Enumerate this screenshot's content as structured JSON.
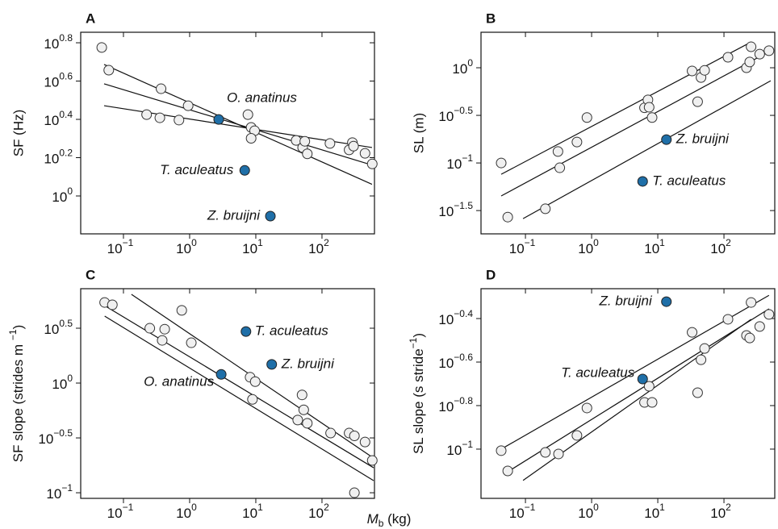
{
  "chart_data": [
    {
      "type": "scatter",
      "panel_label": "A",
      "y_label": "SF (Hz)",
      "log_x": true,
      "log_y": true,
      "xlim": [
        0.0226,
        621
      ],
      "ylim": [
        0.634,
        7.16
      ],
      "xticks": [
        {
          "value": 0.1,
          "label": [
            "10",
            "−1"
          ]
        },
        {
          "value": 1,
          "label": [
            "10",
            "0"
          ]
        },
        {
          "value": 10,
          "label": [
            "10",
            "1"
          ]
        },
        {
          "value": 100,
          "label": [
            "10",
            "2"
          ]
        }
      ],
      "yticks": [
        {
          "value": 6.3096,
          "label": [
            "10",
            "0.8"
          ]
        },
        {
          "value": 3.9811,
          "label": [
            "10",
            "0.6"
          ]
        },
        {
          "value": 2.5119,
          "label": [
            "10",
            "0.4"
          ]
        },
        {
          "value": 1.5849,
          "label": [
            "10",
            "0.2"
          ]
        },
        {
          "value": 1,
          "label": [
            "10",
            "0"
          ]
        }
      ],
      "points": {
        "color": "#f0f0f0",
        "x": [
          0.047,
          0.06,
          0.224,
          0.37,
          0.355,
          0.69,
          0.95,
          7.6,
          8.5,
          9.6,
          8.5,
          40.7,
          51,
          55,
          60,
          132,
          257,
          288,
          300,
          447,
          575
        ],
        "y": [
          5.96,
          4.54,
          2.66,
          3.63,
          2.56,
          2.49,
          2.96,
          2.66,
          2.28,
          2.19,
          2.0,
          1.95,
          1.79,
          1.93,
          1.66,
          1.88,
          1.74,
          1.9,
          1.82,
          1.67,
          1.47
        ]
      },
      "highlights": {
        "color": "#1f6fa8",
        "labels": [
          "O. anatinus",
          "T. aculeatus",
          "Z. bruijni"
        ],
        "x": [
          2.75,
          6.8,
          16.6
        ],
        "y": [
          2.51,
          1.36,
          0.785
        ]
      },
      "fits": [
        {
          "x": [
            0.051,
            570
          ],
          "y": [
            4.86,
            1.15
          ]
        },
        {
          "x": [
            0.051,
            570
          ],
          "y": [
            3.85,
            1.45
          ]
        },
        {
          "x": [
            0.051,
            570
          ],
          "y": [
            2.96,
            1.79
          ]
        }
      ]
    },
    {
      "type": "scatter",
      "panel_label": "B",
      "y_label": "SL (m)",
      "log_x": true,
      "log_y": true,
      "xlim": [
        0.0213,
        586
      ],
      "ylim": [
        0.018,
        2.36
      ],
      "xticks": [
        {
          "value": 0.1,
          "label": [
            "10",
            "−1"
          ]
        },
        {
          "value": 1,
          "label": [
            "10",
            "0"
          ]
        },
        {
          "value": 10,
          "label": [
            "10",
            "1"
          ]
        },
        {
          "value": 100,
          "label": [
            "10",
            "2"
          ]
        }
      ],
      "yticks": [
        {
          "value": 1,
          "label": [
            "10",
            "0"
          ]
        },
        {
          "value": 0.3162,
          "label": [
            "10",
            "−0.5"
          ]
        },
        {
          "value": 0.1,
          "label": [
            "10",
            "−1"
          ]
        },
        {
          "value": 0.03162,
          "label": [
            "10",
            "−1.5"
          ]
        }
      ],
      "points": {
        "color": "#f0f0f0",
        "x": [
          0.043,
          0.054,
          0.2,
          0.31,
          0.33,
          0.6,
          0.85,
          6.3,
          7.1,
          7.4,
          8.2,
          33,
          45,
          51,
          40,
          115,
          219,
          245,
          257,
          347,
          479
        ],
        "y": [
          0.1,
          0.027,
          0.033,
          0.132,
          0.089,
          0.166,
          0.3,
          0.38,
          0.46,
          0.385,
          0.3,
          0.925,
          0.79,
          0.94,
          0.44,
          1.29,
          1.0,
          1.15,
          1.66,
          1.39,
          1.51
        ]
      },
      "highlights": {
        "color": "#1f6fa8",
        "labels": [
          "Z. bruijni",
          "T. aculeatus"
        ],
        "x": [
          13.5,
          5.9
        ],
        "y": [
          0.176,
          0.064
        ]
      },
      "fits": [
        {
          "x": [
            0.043,
            260
          ],
          "y": [
            0.076,
            1.87
          ]
        },
        {
          "x": [
            0.043,
            509
          ],
          "y": [
            0.045,
            1.51
          ]
        },
        {
          "x": [
            0.092,
            509
          ],
          "y": [
            0.026,
            0.73
          ]
        }
      ]
    },
    {
      "type": "scatter",
      "panel_label": "C",
      "y_label": {
        "text": "SF slope (strides m ",
        "sup": "−1",
        "tail": ")"
      },
      "log_x": true,
      "log_y": true,
      "xlim": [
        0.0226,
        621
      ],
      "ylim": [
        0.0889,
        7.25
      ],
      "xticks": [
        {
          "value": 0.1,
          "label": [
            "10",
            "−1"
          ]
        },
        {
          "value": 1,
          "label": [
            "10",
            "0"
          ]
        },
        {
          "value": 10,
          "label": [
            "10",
            "1"
          ]
        },
        {
          "value": 100,
          "label": [
            "10",
            "2"
          ]
        }
      ],
      "yticks": [
        {
          "value": 3.1623,
          "label": [
            "10",
            "0.5"
          ]
        },
        {
          "value": 1,
          "label": [
            "10",
            "0"
          ]
        },
        {
          "value": 0.3162,
          "label": [
            "10",
            "−0.5"
          ]
        },
        {
          "value": 0.1,
          "label": [
            "10",
            "−1"
          ]
        }
      ],
      "points": {
        "color": "#f0f0f0",
        "x": [
          0.052,
          0.068,
          0.25,
          0.42,
          0.385,
          0.76,
          1.06,
          8.2,
          9.8,
          8.9,
          50,
          53,
          60,
          43,
          135,
          257,
          309,
          447,
          575,
          309
        ],
        "y": [
          5.43,
          5.17,
          3.16,
          3.1,
          2.45,
          4.6,
          2.33,
          1.13,
          1.03,
          0.71,
          0.78,
          0.57,
          0.43,
          0.46,
          0.35,
          0.35,
          0.33,
          0.29,
          0.197,
          0.1
        ]
      },
      "highlights": {
        "color": "#1f6fa8",
        "labels": [
          "T. aculeatus",
          "Z. bruijni",
          "O. anatinus"
        ],
        "x": [
          7.1,
          17.4,
          3.0
        ],
        "y": [
          2.95,
          1.48,
          1.2
        ]
      },
      "fits": [
        {
          "x": [
            0.132,
            603
          ],
          "y": [
            6.44,
            0.207
          ]
        },
        {
          "x": [
            0.052,
            603
          ],
          "y": [
            5.08,
            0.169
          ]
        },
        {
          "x": [
            0.052,
            603
          ],
          "y": [
            4.08,
            0.129
          ]
        }
      ]
    },
    {
      "type": "scatter",
      "panel_label": "D",
      "y_label": {
        "text": "SL slope (s stride",
        "sup": "−1",
        "tail": ")"
      },
      "log_x": true,
      "log_y": true,
      "xlim": [
        0.0213,
        586
      ],
      "ylim": [
        0.0594,
        0.546
      ],
      "xticks": [
        {
          "value": 0.1,
          "label": [
            "10",
            "−1"
          ]
        },
        {
          "value": 1,
          "label": [
            "10",
            "0"
          ]
        },
        {
          "value": 10,
          "label": [
            "10",
            "1"
          ]
        },
        {
          "value": 100,
          "label": [
            "10",
            "2"
          ]
        }
      ],
      "yticks": [
        {
          "value": 0.3981,
          "label": [
            "10",
            "−0.4"
          ]
        },
        {
          "value": 0.2512,
          "label": [
            "10",
            "−0.6"
          ]
        },
        {
          "value": 0.1585,
          "label": [
            "10",
            "−0.8"
          ]
        },
        {
          "value": 0.1,
          "label": [
            "10",
            "−1"
          ]
        }
      ],
      "points": {
        "color": "#f0f0f0",
        "x": [
          0.043,
          0.054,
          0.2,
          0.316,
          0.6,
          0.85,
          6.3,
          8.2,
          7.4,
          33,
          40,
          45,
          51,
          115,
          219,
          245,
          257,
          347,
          479
        ],
        "y": [
          0.0984,
          0.0794,
          0.0966,
          0.095,
          0.1156,
          0.1545,
          0.164,
          0.164,
          0.1945,
          0.344,
          0.1816,
          0.2575,
          0.29,
          0.395,
          0.333,
          0.324,
          0.472,
          0.366,
          0.416
        ]
      },
      "highlights": {
        "color": "#1f6fa8",
        "labels": [
          "Z. bruijni",
          "T. aculeatus"
        ],
        "x": [
          13.5,
          5.9
        ],
        "y": [
          0.476,
          0.21
        ]
      },
      "fits": [
        {
          "x": [
            0.043,
            479
          ],
          "y": [
            0.1,
            0.509
          ]
        },
        {
          "x": [
            0.054,
            479
          ],
          "y": [
            0.0787,
            0.441
          ]
        },
        {
          "x": [
            0.092,
            257
          ],
          "y": [
            0.0718,
            0.395
          ]
        }
      ]
    }
  ],
  "x_label": {
    "symbol": "M",
    "subscript": "b",
    "unit": " (kg)"
  }
}
